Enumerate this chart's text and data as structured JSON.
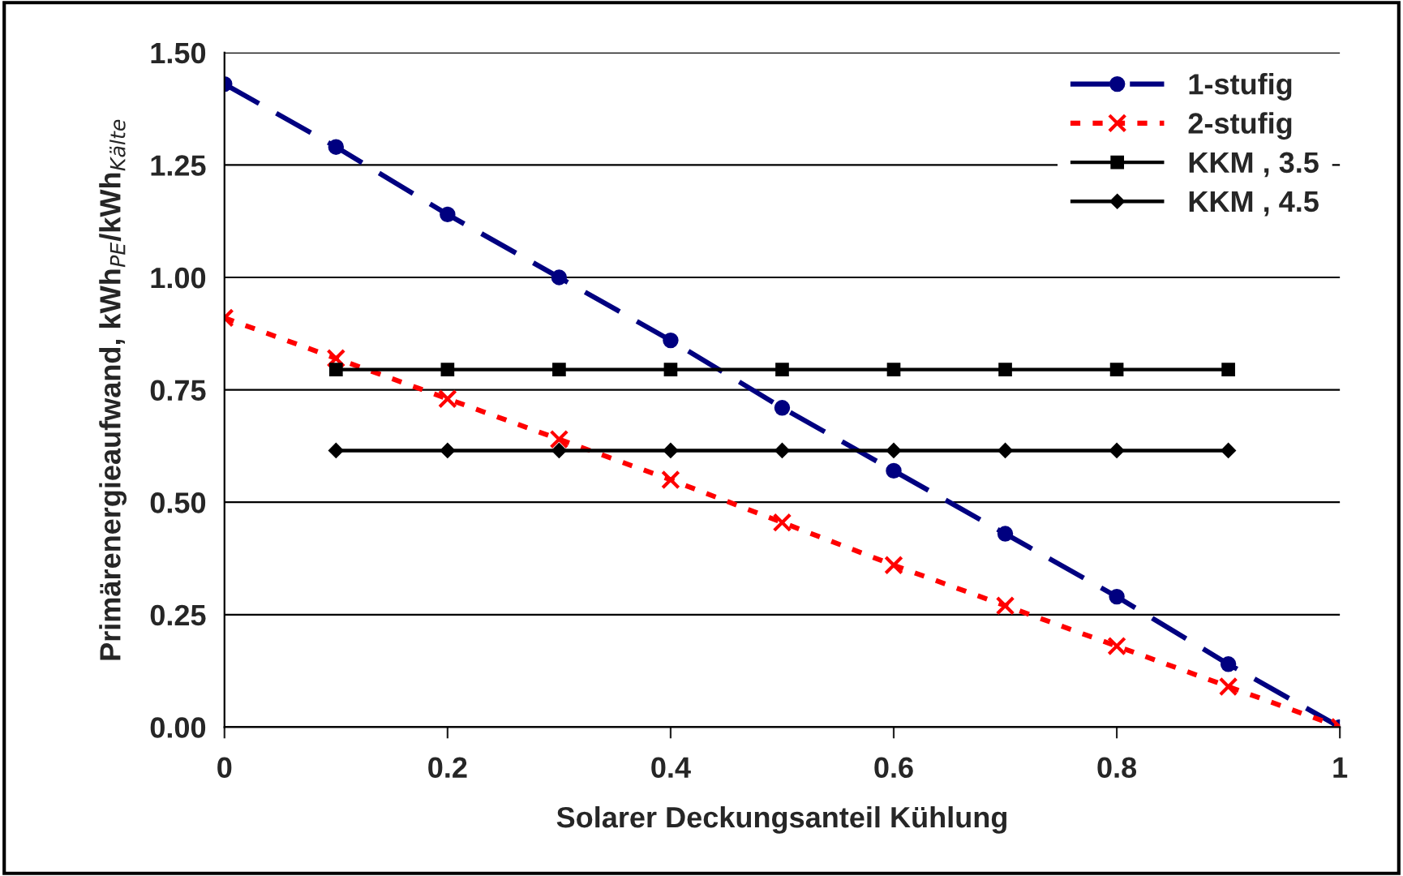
{
  "chart_data": {
    "type": "line",
    "xlabel": "Solarer Deckungsanteil Kühlung",
    "ylabel": "Primärenergieaufwand, kWh$_{PE}$/kWh$_{Kälte}$",
    "x": [
      0,
      0.1,
      0.2,
      0.3,
      0.4,
      0.5,
      0.6,
      0.7,
      0.8,
      0.9,
      1
    ],
    "series": [
      {
        "name": "1-stufig",
        "color": "#000080",
        "marker": "circle",
        "line_style": "dashed",
        "values": [
          1.43,
          1.29,
          1.14,
          1.0,
          0.86,
          0.71,
          0.57,
          0.43,
          0.29,
          0.14,
          0
        ]
      },
      {
        "name": "2-stufig",
        "color": "#ff0000",
        "marker": "cross",
        "line_style": "dotted",
        "values": [
          0.91,
          0.82,
          0.73,
          0.64,
          0.55,
          0.455,
          0.36,
          0.27,
          0.18,
          0.09,
          0
        ]
      },
      {
        "name": "KKM , 3.5",
        "color": "#000000",
        "marker": "square",
        "line_style": "solid",
        "values": [
          null,
          0.795,
          0.795,
          0.795,
          0.795,
          0.795,
          0.795,
          0.795,
          0.795,
          0.795,
          null
        ]
      },
      {
        "name": "KKM , 4.5",
        "color": "#000000",
        "marker": "diamond",
        "line_style": "solid",
        "values": [
          null,
          0.615,
          0.615,
          0.615,
          0.615,
          0.615,
          0.615,
          0.615,
          0.615,
          0.615,
          null
        ]
      }
    ],
    "xlim": [
      0,
      1
    ],
    "xticks": [
      0,
      0.2,
      0.4,
      0.6,
      0.8,
      1
    ],
    "ylim": [
      0,
      1.5
    ],
    "yticks": [
      {
        "value": 0,
        "label": "0.00"
      },
      {
        "value": 0.25,
        "label": "0.25"
      },
      {
        "value": 0.5,
        "label": "0.50"
      },
      {
        "value": 0.75,
        "label": "0.75"
      },
      {
        "value": 1.0,
        "label": "1.00"
      },
      {
        "value": 1.25,
        "label": "1.25"
      },
      {
        "value": 1.5,
        "label": "1.50"
      }
    ],
    "grid": "y",
    "legend": "top right"
  }
}
